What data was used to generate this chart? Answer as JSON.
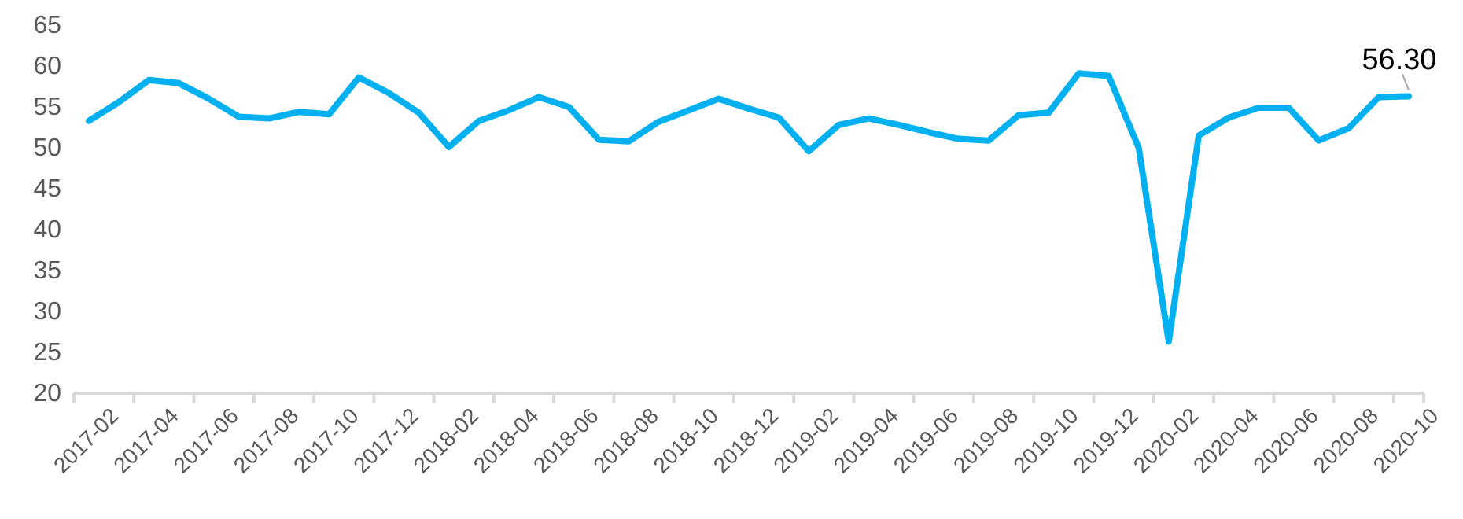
{
  "chart_data": {
    "type": "line",
    "categories": [
      "2017-02",
      null,
      "2017-04",
      null,
      "2017-06",
      null,
      "2017-08",
      null,
      "2017-10",
      null,
      "2017-12",
      null,
      "2018-02",
      null,
      "2018-04",
      null,
      "2018-06",
      null,
      "2018-08",
      null,
      "2018-10",
      null,
      "2018-12",
      null,
      "2019-02",
      null,
      "2019-04",
      null,
      "2019-06",
      null,
      "2019-08",
      null,
      "2019-10",
      null,
      "2019-12",
      null,
      "2020-02",
      null,
      "2020-04",
      null,
      "2020-06",
      null,
      "2020-08",
      null,
      "2020-10"
    ],
    "series": [
      {
        "color": "#00b0f0",
        "values": [
          53.3,
          55.6,
          58.3,
          57.9,
          56.0,
          53.8,
          53.6,
          54.4,
          54.1,
          58.6,
          56.7,
          54.3,
          50.1,
          53.3,
          54.6,
          56.2,
          55.0,
          51.0,
          50.8,
          53.2,
          54.6,
          56.0,
          54.8,
          53.7,
          49.6,
          52.8,
          53.6,
          52.8,
          51.9,
          51.1,
          50.9,
          54.0,
          54.3,
          59.1,
          58.8,
          50.0,
          26.3,
          51.5,
          53.7,
          54.9,
          54.9,
          50.9,
          52.4,
          56.2,
          56.3
        ],
        "value_labels": [
          null,
          null,
          null,
          null,
          null,
          null,
          null,
          null,
          null,
          null,
          null,
          null,
          null,
          null,
          null,
          null,
          null,
          null,
          null,
          null,
          null,
          null,
          null,
          null,
          null,
          null,
          null,
          null,
          null,
          null,
          null,
          null,
          null,
          null,
          null,
          null,
          null,
          null,
          null,
          null,
          null,
          null,
          null,
          null,
          "56.30"
        ]
      }
    ],
    "ylim": [
      20,
      65
    ],
    "yticks": [
      20,
      25,
      30,
      35,
      40,
      45,
      50,
      55,
      60,
      65
    ],
    "grid": false,
    "marker": "none",
    "line_style": "solid"
  }
}
